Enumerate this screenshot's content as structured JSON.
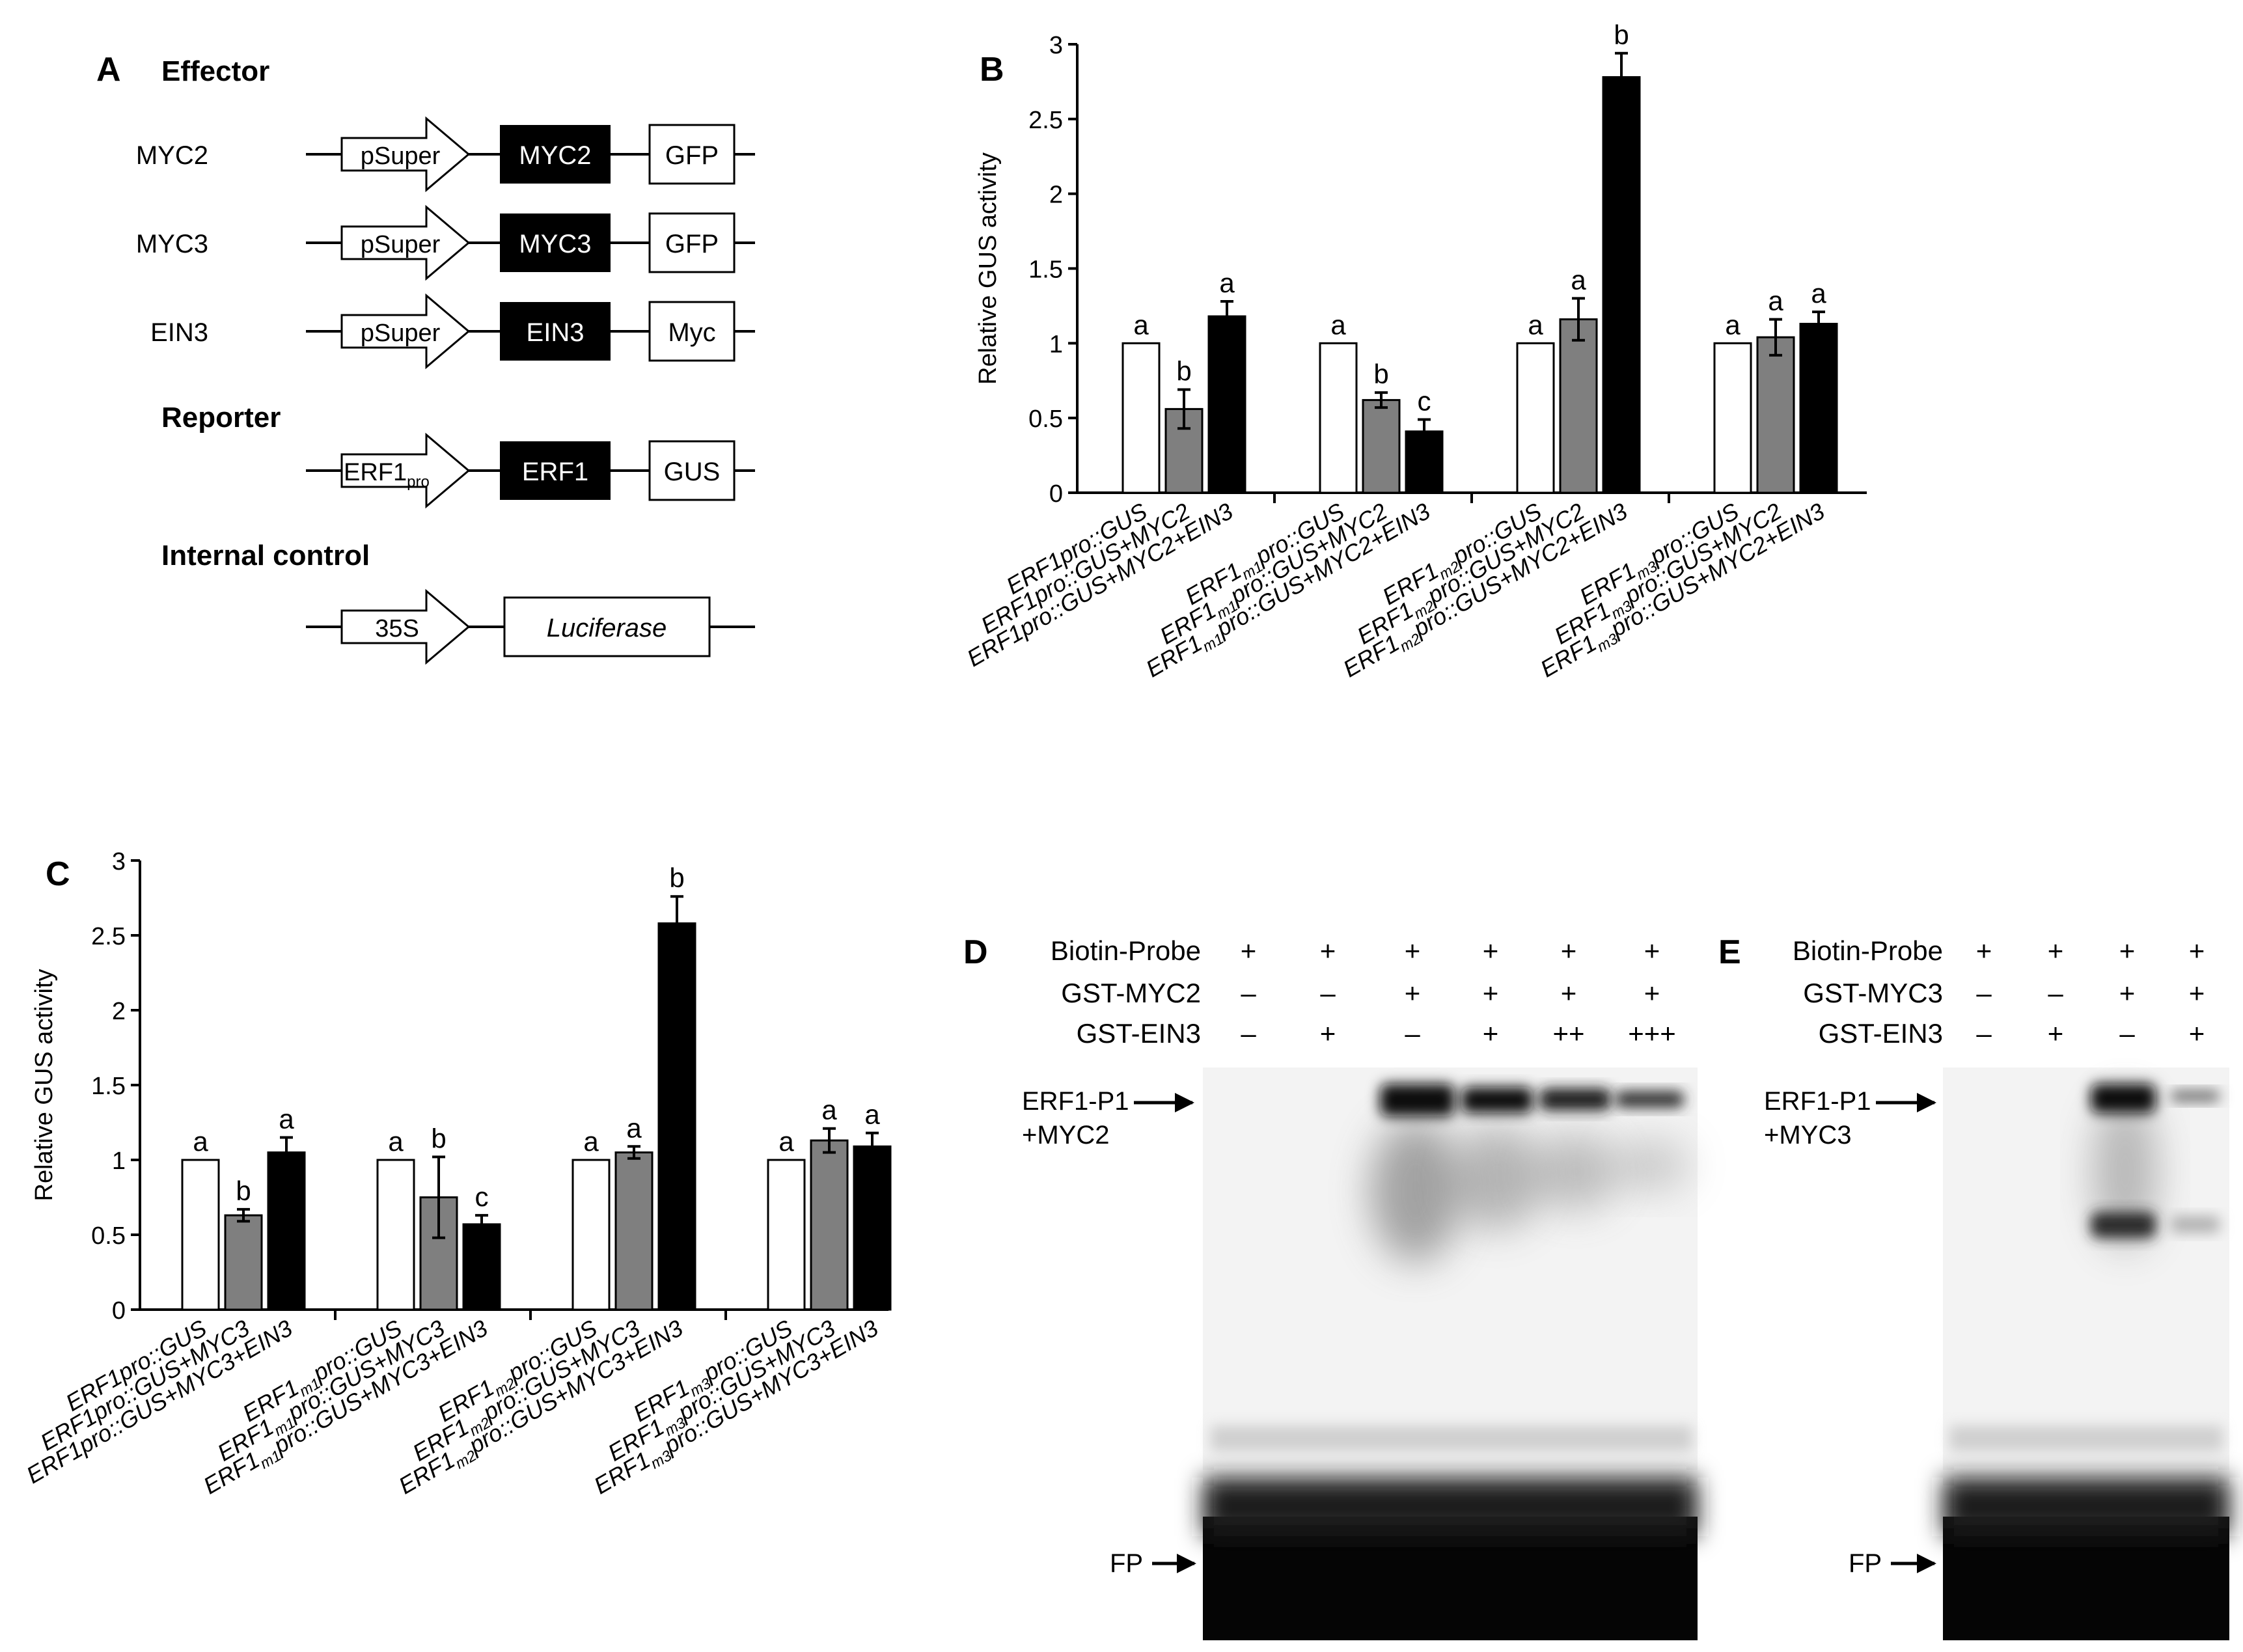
{
  "panel_letters": {
    "a": "A",
    "b": "B",
    "c": "C",
    "d": "D",
    "e": "E"
  },
  "panel_a": {
    "effector_heading": "Effector",
    "reporter_heading": "Reporter",
    "internal_control_heading": "Internal control",
    "rows": [
      {
        "label": "MYC2",
        "promoter": "pSuper",
        "gene": "MYC2",
        "tag": "GFP"
      },
      {
        "label": "MYC3",
        "promoter": "pSuper",
        "gene": "MYC3",
        "tag": "GFP"
      },
      {
        "label": "EIN3",
        "promoter": "pSuper",
        "gene": "EIN3",
        "tag": "Myc"
      }
    ],
    "reporter": {
      "promoter_main": "ERF1",
      "promoter_sub": "pro",
      "gene": "ERF1",
      "tag": "GUS"
    },
    "control": {
      "promoter": "35S",
      "gene": "Luciferase"
    },
    "colors": {
      "gene_fill": "#000000",
      "box_fill": "#ffffff"
    }
  },
  "chart_data": [
    {
      "type": "bar",
      "panel": "B",
      "ylabel": "Relative GUS activity",
      "ylim": [
        0,
        3
      ],
      "yticks": [
        "0",
        "0.5",
        "1",
        "1.5",
        "2",
        "2.5",
        "3"
      ],
      "ytick_values": [
        0,
        0.5,
        1,
        1.5,
        2,
        2.5,
        3
      ],
      "groups": [
        {
          "bars": [
            {
              "label": [
                {
                  "t": "ERF1pro::GUS"
                }
              ],
              "value": 1.0,
              "err": 0,
              "letter": "a",
              "fill": "white"
            },
            {
              "label": [
                {
                  "t": "ERF1pro::GUS+MYC2"
                }
              ],
              "value": 0.56,
              "err": 0.13,
              "letter": "b",
              "fill": "gray"
            },
            {
              "label": [
                {
                  "t": "ERF1pro::GUS+MYC2+EIN3"
                }
              ],
              "value": 1.18,
              "err": 0.1,
              "letter": "a",
              "fill": "black"
            }
          ]
        },
        {
          "bars": [
            {
              "label": [
                {
                  "t": "ERF1"
                },
                {
                  "t": "m1",
                  "sub": true
                },
                {
                  "t": "pro::GUS"
                }
              ],
              "value": 1.0,
              "err": 0,
              "letter": "a",
              "fill": "white"
            },
            {
              "label": [
                {
                  "t": "ERF1"
                },
                {
                  "t": "m1",
                  "sub": true
                },
                {
                  "t": "pro::GUS+MYC2"
                }
              ],
              "value": 0.62,
              "err": 0.05,
              "letter": "b",
              "fill": "gray"
            },
            {
              "label": [
                {
                  "t": "ERF1"
                },
                {
                  "t": "m1",
                  "sub": true
                },
                {
                  "t": "pro::GUS+MYC2+EIN3"
                }
              ],
              "value": 0.41,
              "err": 0.08,
              "letter": "c",
              "fill": "black"
            }
          ]
        },
        {
          "bars": [
            {
              "label": [
                {
                  "t": "ERF1"
                },
                {
                  "t": "m2",
                  "sub": true
                },
                {
                  "t": "pro::GUS"
                }
              ],
              "value": 1.0,
              "err": 0,
              "letter": "a",
              "fill": "white"
            },
            {
              "label": [
                {
                  "t": "ERF1"
                },
                {
                  "t": "m2",
                  "sub": true
                },
                {
                  "t": "pro::GUS+MYC2"
                }
              ],
              "value": 1.16,
              "err": 0.14,
              "letter": "a",
              "fill": "gray"
            },
            {
              "label": [
                {
                  "t": "ERF1"
                },
                {
                  "t": "m2",
                  "sub": true
                },
                {
                  "t": "pro::GUS+MYC2+EIN3"
                }
              ],
              "value": 2.78,
              "err": 0.16,
              "letter": "b",
              "fill": "black"
            }
          ]
        },
        {
          "bars": [
            {
              "label": [
                {
                  "t": "ERF1"
                },
                {
                  "t": "m3",
                  "sub": true
                },
                {
                  "t": "pro::GUS"
                }
              ],
              "value": 1.0,
              "err": 0,
              "letter": "a",
              "fill": "white"
            },
            {
              "label": [
                {
                  "t": "ERF1"
                },
                {
                  "t": "m3",
                  "sub": true
                },
                {
                  "t": "pro::GUS+MYC2"
                }
              ],
              "value": 1.04,
              "err": 0.12,
              "letter": "a",
              "fill": "gray"
            },
            {
              "label": [
                {
                  "t": "ERF1"
                },
                {
                  "t": "m3",
                  "sub": true
                },
                {
                  "t": "pro::GUS+MYC2+EIN3"
                }
              ],
              "value": 1.13,
              "err": 0.08,
              "letter": "a",
              "fill": "black"
            }
          ]
        }
      ]
    },
    {
      "type": "bar",
      "panel": "C",
      "ylabel": "Relative GUS activity",
      "ylim": [
        0,
        3
      ],
      "yticks": [
        "0",
        "0.5",
        "1",
        "1.5",
        "2",
        "2.5",
        "3"
      ],
      "ytick_values": [
        0,
        0.5,
        1,
        1.5,
        2,
        2.5,
        3
      ],
      "groups": [
        {
          "bars": [
            {
              "label": [
                {
                  "t": "ERF1pro::GUS"
                }
              ],
              "value": 1.0,
              "err": 0,
              "letter": "a",
              "fill": "white"
            },
            {
              "label": [
                {
                  "t": "ERF1pro::GUS+MYC3"
                }
              ],
              "value": 0.63,
              "err": 0.04,
              "letter": "b",
              "fill": "gray"
            },
            {
              "label": [
                {
                  "t": "ERF1pro::GUS+MYC3+EIN3"
                }
              ],
              "value": 1.05,
              "err": 0.1,
              "letter": "a",
              "fill": "black"
            }
          ]
        },
        {
          "bars": [
            {
              "label": [
                {
                  "t": "ERF1"
                },
                {
                  "t": "m1",
                  "sub": true
                },
                {
                  "t": "pro::GUS"
                }
              ],
              "value": 1.0,
              "err": 0,
              "letter": "a",
              "fill": "white"
            },
            {
              "label": [
                {
                  "t": "ERF1"
                },
                {
                  "t": "m1",
                  "sub": true
                },
                {
                  "t": "pro::GUS+MYC3"
                }
              ],
              "value": 0.75,
              "err": 0.27,
              "letter": "b",
              "fill": "gray"
            },
            {
              "label": [
                {
                  "t": "ERF1"
                },
                {
                  "t": "m1",
                  "sub": true
                },
                {
                  "t": "pro::GUS+MYC3+EIN3"
                }
              ],
              "value": 0.57,
              "err": 0.06,
              "letter": "c",
              "fill": "black"
            }
          ]
        },
        {
          "bars": [
            {
              "label": [
                {
                  "t": "ERF1"
                },
                {
                  "t": "m2",
                  "sub": true
                },
                {
                  "t": "pro::GUS"
                }
              ],
              "value": 1.0,
              "err": 0,
              "letter": "a",
              "fill": "white"
            },
            {
              "label": [
                {
                  "t": "ERF1"
                },
                {
                  "t": "m2",
                  "sub": true
                },
                {
                  "t": "pro::GUS+MYC3"
                }
              ],
              "value": 1.05,
              "err": 0.04,
              "letter": "a",
              "fill": "gray"
            },
            {
              "label": [
                {
                  "t": "ERF1"
                },
                {
                  "t": "m2",
                  "sub": true
                },
                {
                  "t": "pro::GUS+MYC3+EIN3"
                }
              ],
              "value": 2.58,
              "err": 0.18,
              "letter": "b",
              "fill": "black"
            }
          ]
        },
        {
          "bars": [
            {
              "label": [
                {
                  "t": "ERF1"
                },
                {
                  "t": "m3",
                  "sub": true
                },
                {
                  "t": "pro::GUS"
                }
              ],
              "value": 1.0,
              "err": 0,
              "letter": "a",
              "fill": "white"
            },
            {
              "label": [
                {
                  "t": "ERF1"
                },
                {
                  "t": "m3",
                  "sub": true
                },
                {
                  "t": "pro::GUS+MYC3"
                }
              ],
              "value": 1.13,
              "err": 0.08,
              "letter": "a",
              "fill": "gray"
            },
            {
              "label": [
                {
                  "t": "ERF1"
                },
                {
                  "t": "m3",
                  "sub": true
                },
                {
                  "t": "pro::GUS+MYC3+EIN3"
                }
              ],
              "value": 1.09,
              "err": 0.09,
              "letter": "a",
              "fill": "black"
            }
          ]
        }
      ]
    }
  ],
  "bar_colors": {
    "white": "#ffffff",
    "gray": "#7f7f7f",
    "black": "#000000"
  },
  "panel_d": {
    "row_labels": [
      "Biotin-Probe",
      "GST-MYC2",
      "GST-EIN3"
    ],
    "lanes": [
      [
        "+",
        "–",
        "–"
      ],
      [
        "+",
        "–",
        "+"
      ],
      [
        "+",
        "+",
        "–"
      ],
      [
        "+",
        "+",
        "+"
      ],
      [
        "+",
        "+",
        "++"
      ],
      [
        "+",
        "+",
        "+++"
      ]
    ],
    "complex_label_line1": "ERF1-P1",
    "complex_label_line2": "+MYC2",
    "fp_label": "FP"
  },
  "panel_e": {
    "row_labels": [
      "Biotin-Probe",
      "GST-MYC3",
      "GST-EIN3"
    ],
    "lanes": [
      [
        "+",
        "–",
        "–"
      ],
      [
        "+",
        "–",
        "+"
      ],
      [
        "+",
        "+",
        "–"
      ],
      [
        "+",
        "+",
        "+"
      ]
    ],
    "complex_label_line1": "ERF1-P1",
    "complex_label_line2": "+MYC3",
    "fp_label": "FP"
  }
}
